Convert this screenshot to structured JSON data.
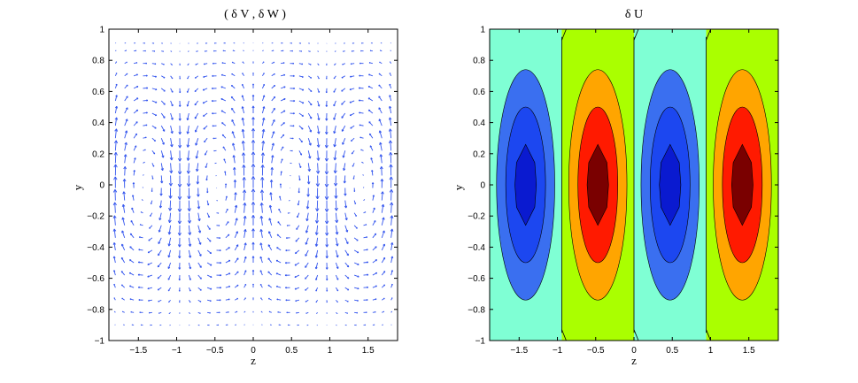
{
  "chart_data": [
    {
      "type": "quiver",
      "title": "( δ V , δ  W )",
      "xlabel": "z",
      "ylabel": "y",
      "xlim": [
        -1.885,
        1.885
      ],
      "ylim": [
        -1,
        1
      ],
      "xticks": [
        -1.5,
        -1,
        -0.5,
        0,
        0.5,
        1,
        1.5
      ],
      "xtick_labels": [
        "−1.5",
        "−1",
        "−0.5",
        "0",
        "0.5",
        "1",
        "1.5"
      ],
      "yticks": [
        -1,
        -0.8,
        -0.6,
        -0.4,
        -0.2,
        0,
        0.2,
        0.4,
        0.6,
        0.8,
        1
      ],
      "ytick_labels": [
        "−1",
        "−0.8",
        "−0.6",
        "−0.4",
        "−0.2",
        "0",
        "0.2",
        "0.4",
        "0.6",
        "0.8",
        "1"
      ],
      "arrow_color": "#3355ee",
      "grid": false,
      "field": {
        "description_free": true,
        "z_points": [
          -1.8,
          -1.68,
          -1.56,
          -1.44,
          -1.32,
          -1.2,
          -1.08,
          -0.96,
          -0.84,
          -0.72,
          -0.6,
          -0.48,
          -0.36,
          -0.24,
          -0.12,
          0.0,
          0.12,
          0.24,
          0.36,
          0.48,
          0.6,
          0.72,
          0.84,
          0.96,
          1.08,
          1.2,
          1.32,
          1.44,
          1.56,
          1.68,
          1.8
        ],
        "y_points": [
          -0.9,
          -0.82,
          -0.74,
          -0.66,
          -0.58,
          -0.5,
          -0.42,
          -0.34,
          -0.26,
          -0.18,
          -0.1,
          -0.02,
          0.06,
          0.14,
          0.22,
          0.3,
          0.38,
          0.46,
          0.54,
          0.62,
          0.7,
          0.78,
          0.86,
          0.91
        ],
        "wavenumber": 3.333,
        "max_arrow_len": 0.075
      }
    },
    {
      "type": "contourf",
      "title": "δ U",
      "xlabel": "z",
      "ylabel": "y",
      "xlim": [
        -1.885,
        1.885
      ],
      "ylim": [
        -1,
        1
      ],
      "xticks": [
        -1.5,
        -1,
        -0.5,
        0,
        0.5,
        1,
        1.5
      ],
      "xtick_labels": [
        "−1.5",
        "−1",
        "−0.5",
        "0",
        "0.5",
        "1",
        "1.5"
      ],
      "yticks": [
        -1,
        -0.8,
        -0.6,
        -0.4,
        -0.2,
        0,
        0.2,
        0.4,
        0.6,
        0.8,
        1
      ],
      "ytick_labels": [
        "−1",
        "−0.8",
        "−0.6",
        "−0.4",
        "−0.2",
        "0",
        "0.2",
        "0.4",
        "0.6",
        "0.8",
        "1"
      ],
      "grid": false,
      "bands": [
        {
          "z_range": [
            -1.885,
            -0.943
          ],
          "background": "#7fffd4"
        },
        {
          "z_range": [
            -0.943,
            0.0
          ],
          "background": "#aaff00"
        },
        {
          "z_range": [
            0.0,
            0.943
          ],
          "background": "#7fffd4"
        },
        {
          "z_range": [
            0.943,
            1.885
          ],
          "background": "#aaff00"
        }
      ],
      "cells": [
        {
          "center_z": -1.415,
          "sign": "negative",
          "colors": [
            "#3a6ff0",
            "#1c47f0",
            "#0a1ad0"
          ]
        },
        {
          "center_z": -0.472,
          "sign": "positive",
          "colors": [
            "#ffa500",
            "#ff1a00",
            "#7a0000"
          ]
        },
        {
          "center_z": 0.472,
          "sign": "negative",
          "colors": [
            "#3a6ff0",
            "#1c47f0",
            "#0a1ad0"
          ]
        },
        {
          "center_z": 1.415,
          "sign": "positive",
          "colors": [
            "#ffa500",
            "#ff1a00",
            "#7a0000"
          ]
        }
      ],
      "contour_levels": [
        {
          "half_width": 0.38,
          "half_height": 0.74
        },
        {
          "half_width": 0.26,
          "half_height": 0.5
        },
        {
          "half_width": 0.14,
          "half_height": 0.26
        }
      ]
    }
  ]
}
